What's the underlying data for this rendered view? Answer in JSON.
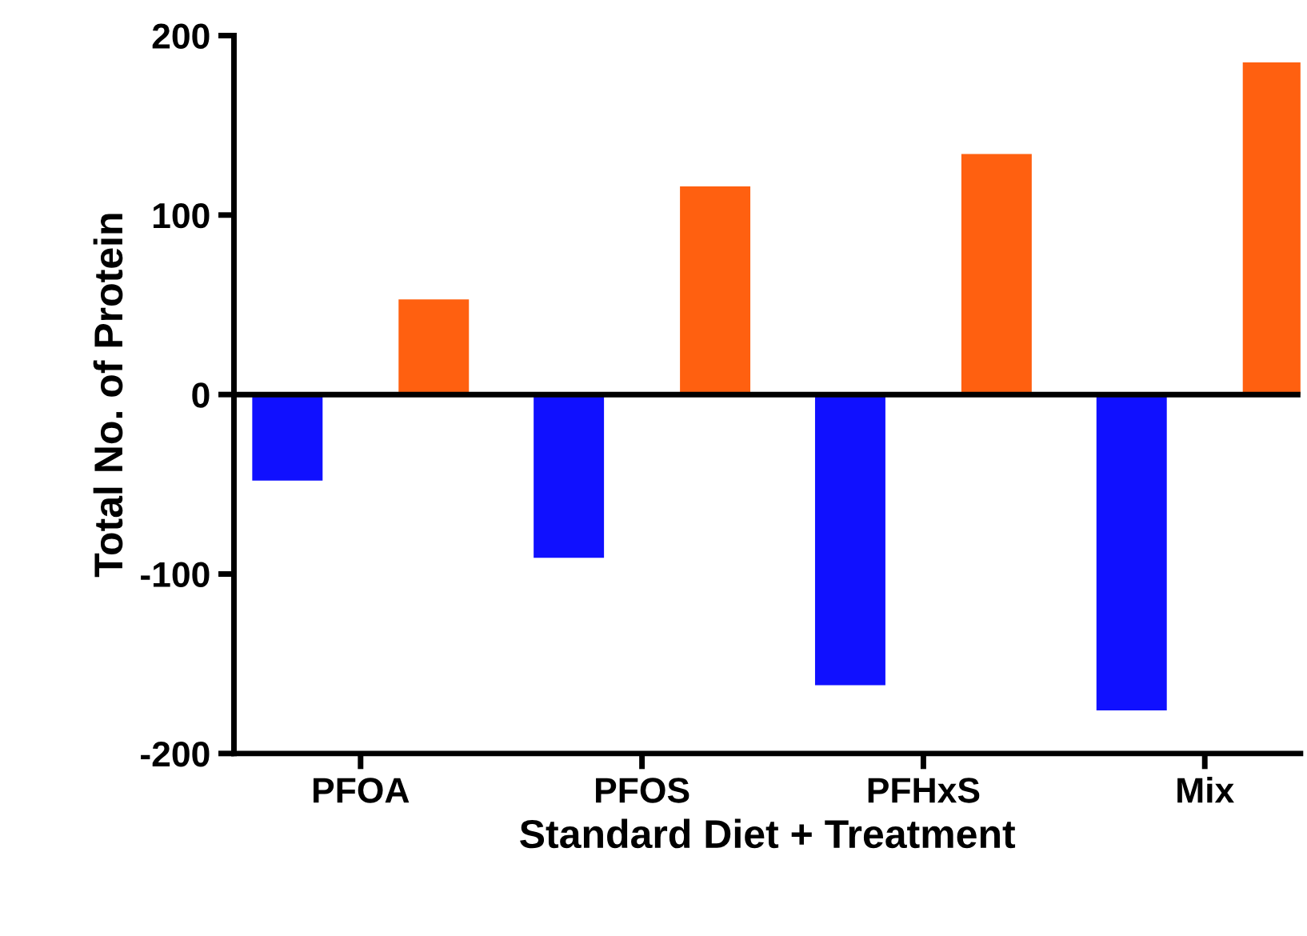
{
  "chart_data": {
    "type": "bar",
    "xlabel": "Standard Diet + Treatment",
    "ylabel": "Total No. of Protein",
    "categories": [
      "PFOA",
      "PFOS",
      "PFHxS",
      "Mix"
    ],
    "series": [
      {
        "color": "#1010ff",
        "values": [
          -48,
          -91,
          -162,
          -176
        ]
      },
      {
        "color": "#ff6010",
        "values": [
          53,
          116,
          134,
          185
        ]
      }
    ],
    "ylim": [
      -200,
      200
    ],
    "yticks": [
      -200,
      -100,
      0,
      100,
      200
    ],
    "ref_lines": [
      {
        "axis": "y",
        "value": 0
      }
    ],
    "grid": false,
    "legend": false
  }
}
